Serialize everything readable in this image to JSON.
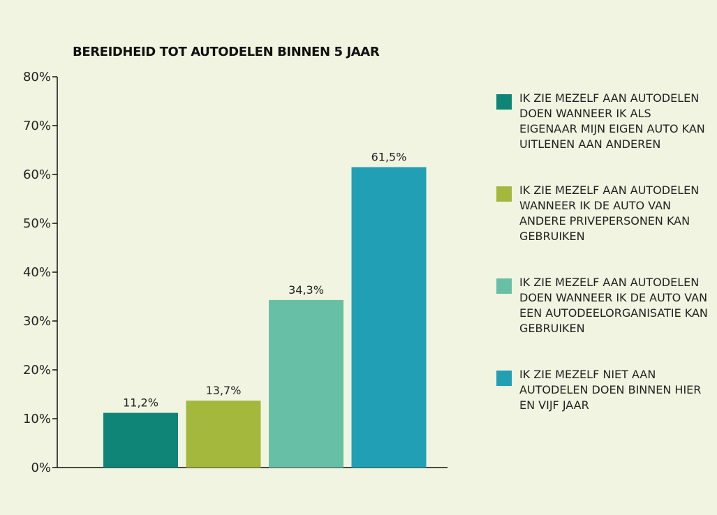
{
  "chart_data": {
    "type": "bar",
    "title": "BEREIDHEID TOT AUTODELEN BINNEN 5 JAAR",
    "ylim": [
      0,
      80
    ],
    "yticks": [
      "0%",
      "10%",
      "20%",
      "30%",
      "40%",
      "50%",
      "60%",
      "70%",
      "80%"
    ],
    "values": [
      11.2,
      13.7,
      34.3,
      61.5
    ],
    "value_labels": [
      "11,2%",
      "13,7%",
      "34,3%",
      "61,5%"
    ],
    "colors": [
      "#0f8578",
      "#a3b83c",
      "#67c0a6",
      "#219fb5"
    ],
    "legend_position": "right",
    "legend": [
      "IK ZIE MEZELF AAN AUTODELEN DOEN WANNEER IK ALS EIGENAAR MIJN EIGEN AUTO KAN UITLENEN AAN ANDEREN",
      "IK ZIE MEZELF AAN AUTODELEN WANNEER IK DE AUTO VAN ANDERE PRIVEPERSONEN KAN GEBRUIKEN",
      "IK ZIE MEZELF AAN AUTODELEN DOEN WANNEER IK DE AUTO VAN EEN AUTODEELORGANISATIE KAN GEBRUIKEN",
      "IK ZIE MEZELF NIET AAN AUTODELEN DOEN BINNEN HIER EN VIJF JAAR"
    ]
  }
}
